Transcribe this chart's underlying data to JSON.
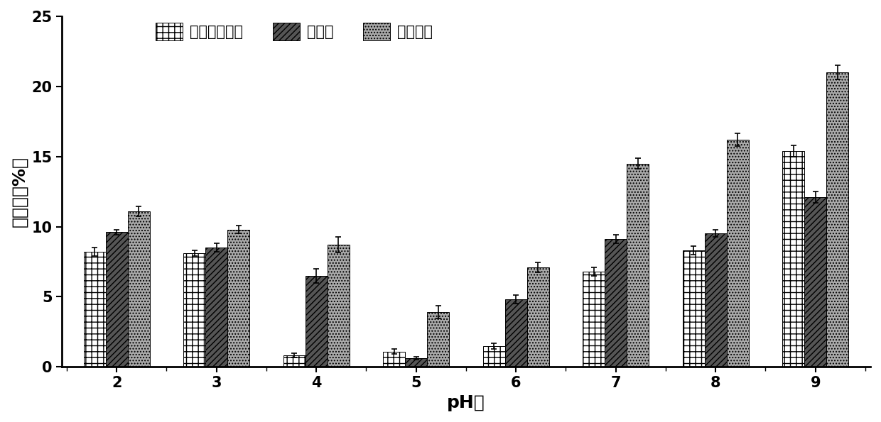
{
  "ph_values": [
    2,
    3,
    4,
    5,
    6,
    7,
    8,
    9
  ],
  "series": [
    {
      "name": "大豆分离蛋白",
      "values": [
        8.2,
        8.1,
        0.8,
        1.1,
        1.5,
        6.8,
        8.3,
        15.4
      ],
      "errors": [
        0.3,
        0.2,
        0.15,
        0.2,
        0.2,
        0.3,
        0.3,
        0.4
      ],
      "hatch": "++",
      "facecolor": "#ffffff",
      "edgecolor": "#000000"
    },
    {
      "name": "冻干粉",
      "values": [
        9.6,
        8.5,
        6.5,
        0.6,
        4.8,
        9.1,
        9.5,
        12.1
      ],
      "errors": [
        0.2,
        0.3,
        0.5,
        0.1,
        0.3,
        0.3,
        0.25,
        0.4
      ],
      "hatch": "////",
      "facecolor": "#555555",
      "edgecolor": "#000000"
    },
    {
      "name": "卵黄蛋白",
      "values": [
        11.1,
        9.8,
        8.7,
        3.9,
        7.1,
        14.5,
        16.2,
        21.0
      ],
      "errors": [
        0.35,
        0.3,
        0.55,
        0.45,
        0.35,
        0.4,
        0.45,
        0.5
      ],
      "hatch": "....",
      "facecolor": "#aaaaaa",
      "edgecolor": "#000000"
    }
  ],
  "xlabel": "pH值",
  "ylabel": "乳化性（%）",
  "ylim": [
    0,
    25
  ],
  "yticks": [
    0,
    5,
    10,
    15,
    20,
    25
  ],
  "bar_width": 0.22,
  "figsize": [
    12.4,
    5.95
  ],
  "dpi": 100,
  "background_color": "#ffffff",
  "font_size_axis_label": 18,
  "font_size_tick": 15,
  "font_size_legend": 15
}
